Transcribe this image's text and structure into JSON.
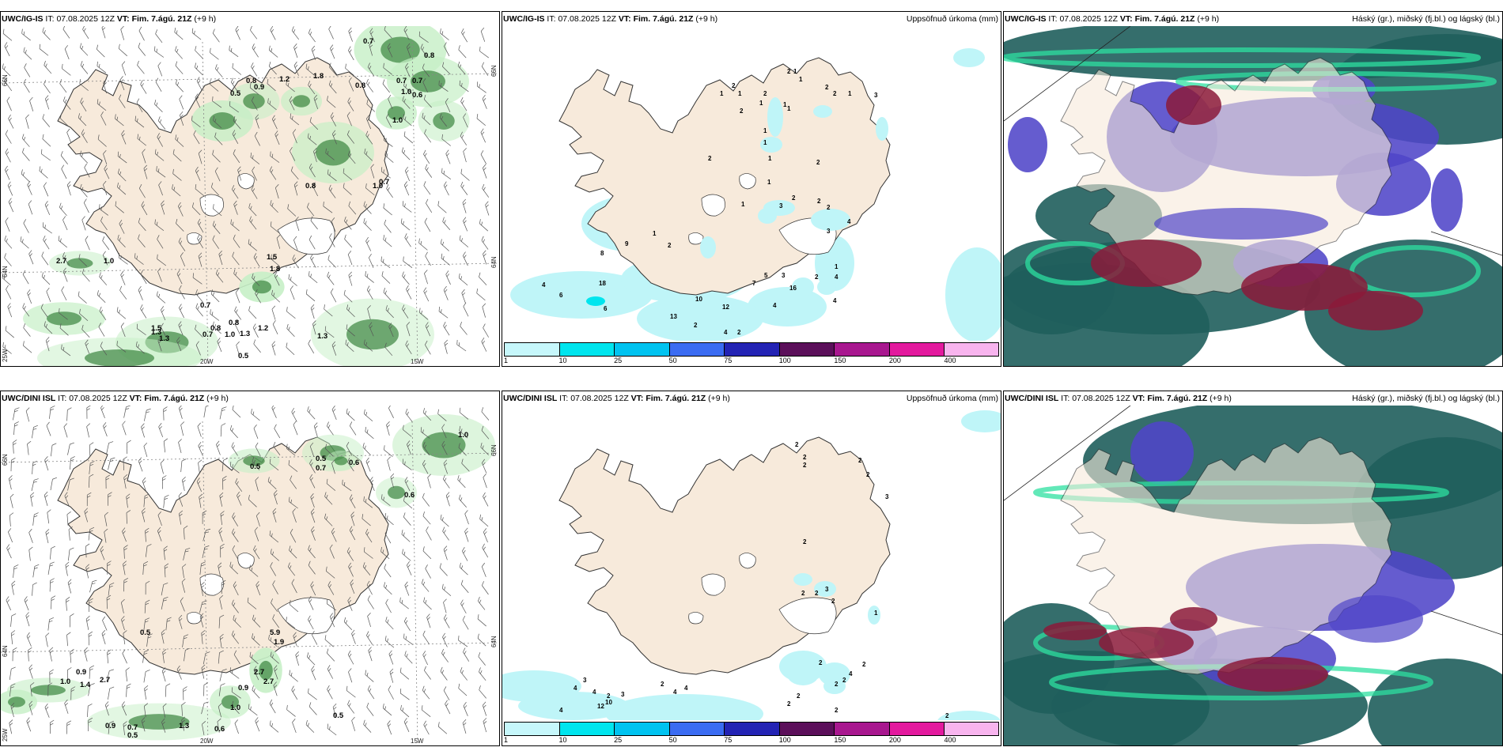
{
  "rows": [
    {
      "model": "UWC/IG-IS",
      "panels": [
        {
          "type": "wind",
          "model": "UWC/IG-IS",
          "it_label": "IT:",
          "it": "07.08.2025 12Z",
          "vt_label": "VT:",
          "vt": "Fim. 7.ágú. 21Z",
          "lead": "(+9 h)",
          "right": "",
          "labels": [
            "0.7",
            "0.8",
            "0.5",
            "0.9",
            "0.8",
            "1.2",
            "1.8",
            "0.7",
            "0.6",
            "0.8",
            "1.0",
            "0.7",
            "1.0",
            "0.8",
            "0.7",
            "1.0",
            "1.5",
            "2.7",
            "1.0",
            "0.7",
            "1.5",
            "1.8",
            "1.3",
            "0.7",
            "1.0",
            "0.8",
            "0.8",
            "1.3",
            "0.5",
            "1.3",
            "1.3",
            "1.2"
          ],
          "axis": {
            "lat_top": "66N",
            "lat_bottom": "64N",
            "lat_top_r": "66N",
            "lat_bottom_r": "64N",
            "lon_left": "25W",
            "lon_mid": "20W",
            "lon_right": "15W"
          }
        },
        {
          "type": "precip",
          "model": "UWC/IG-IS",
          "it_label": "IT:",
          "it": "07.08.2025 12Z",
          "vt_label": "VT:",
          "vt": "Fim. 7.ágú. 21Z",
          "lead": "(+9 h)",
          "right": "Uppsöfnuð úrkoma (mm)",
          "labels": [
            "1",
            "1",
            "2",
            "1",
            "1",
            "2",
            "1",
            "2",
            "2",
            "2",
            "1",
            "3",
            "1",
            "1",
            "1",
            "2",
            "1",
            "1",
            "2",
            "2",
            "1",
            "3",
            "1",
            "2",
            "2",
            "2",
            "3",
            "1",
            "4",
            "4",
            "4",
            "2",
            "8",
            "9",
            "1",
            "2",
            "4",
            "6",
            "18",
            "6",
            "13",
            "10",
            "12",
            "7",
            "5",
            "16",
            "3",
            "4",
            "2",
            "4",
            "2",
            "2"
          ],
          "colorbar": {
            "ticks": [
              "1",
              "10",
              "25",
              "50",
              "75",
              "100",
              "150",
              "200",
              "400"
            ],
            "colors": [
              "#c6f7fb",
              "#00e5ee",
              "#00c3f0",
              "#3b6cf2",
              "#2323b4",
              "#5b0f5a",
              "#a8178f",
              "#e3199e",
              "#f8b4ee"
            ]
          }
        },
        {
          "type": "cloud",
          "model": "UWC/IG-IS",
          "it_label": "IT:",
          "it": "07.08.2025 12Z",
          "vt_label": "VT:",
          "vt": "Fim. 7.ágú. 21Z",
          "lead": "(+9 h)",
          "right": "Háský (gr.), miðský (fj.bl.) og lágský (bl.)"
        }
      ]
    },
    {
      "model": "UWC/DINI ISL",
      "panels": [
        {
          "type": "wind",
          "model": "UWC/DINI ISL",
          "it_label": "IT:",
          "it": "07.08.2025 12Z",
          "vt_label": "VT:",
          "vt": "Fim. 7.ágú. 21Z",
          "lead": "(+9 h)",
          "right": "",
          "labels": [
            "1.0",
            "0.5",
            "0.5",
            "0.7",
            "0.6",
            "0.6",
            "0.5",
            "0.9",
            "1.0",
            "1.4",
            "2.7",
            "5.9",
            "1.9",
            "0.9",
            "2.7",
            "2.7",
            "1.0",
            "0.9",
            "0.7",
            "0.5",
            "1.3",
            "0.6",
            "0.5"
          ],
          "axis": {
            "lat_top": "66N",
            "lat_bottom": "64N",
            "lat_top_r": "66N",
            "lat_bottom_r": "64N",
            "lon_left": "25W",
            "lon_mid": "20W",
            "lon_right": "15W"
          }
        },
        {
          "type": "precip",
          "model": "UWC/DINI ISL",
          "it_label": "IT:",
          "it": "07.08.2025 12Z",
          "vt_label": "VT:",
          "vt": "Fim. 7.ágú. 21Z",
          "lead": "(+9 h)",
          "right": "Uppsöfnuð úrkoma (mm)",
          "labels": [
            "2",
            "2",
            "2",
            "2",
            "2",
            "3",
            "2",
            "2",
            "2",
            "3",
            "2",
            "1",
            "2",
            "2",
            "2",
            "4",
            "2",
            "2",
            "4",
            "4",
            "3",
            "4",
            "2",
            "3",
            "4",
            "4",
            "12",
            "10",
            "4",
            "2",
            "2",
            "2",
            "1",
            "1",
            "2"
          ],
          "colorbar": {
            "ticks": [
              "1",
              "10",
              "25",
              "50",
              "75",
              "100",
              "150",
              "200",
              "400"
            ],
            "colors": [
              "#c6f7fb",
              "#00e5ee",
              "#00c3f0",
              "#3b6cf2",
              "#2323b4",
              "#5b0f5a",
              "#a8178f",
              "#e3199e",
              "#f8b4ee"
            ]
          }
        },
        {
          "type": "cloud",
          "model": "UWC/DINI ISL",
          "it_label": "IT:",
          "it": "07.08.2025 12Z",
          "vt_label": "VT:",
          "vt": "Fim. 7.ágú. 21Z",
          "lead": "(+9 h)",
          "right": "Háský (gr.), miðský (fj.bl.) og lágský (bl.)"
        }
      ]
    }
  ],
  "colors": {
    "land": "#f7eadb",
    "coast": "#333333",
    "precip_light": "#bff5f8",
    "precip_mid": "#00e5ee",
    "wind_green_light": "#c6efc6",
    "wind_green_dark": "#2e7d32",
    "cloud_high": "#1f5e5c",
    "cloud_mid": "#5046c8",
    "cloud_low": "#8b1a3a"
  }
}
